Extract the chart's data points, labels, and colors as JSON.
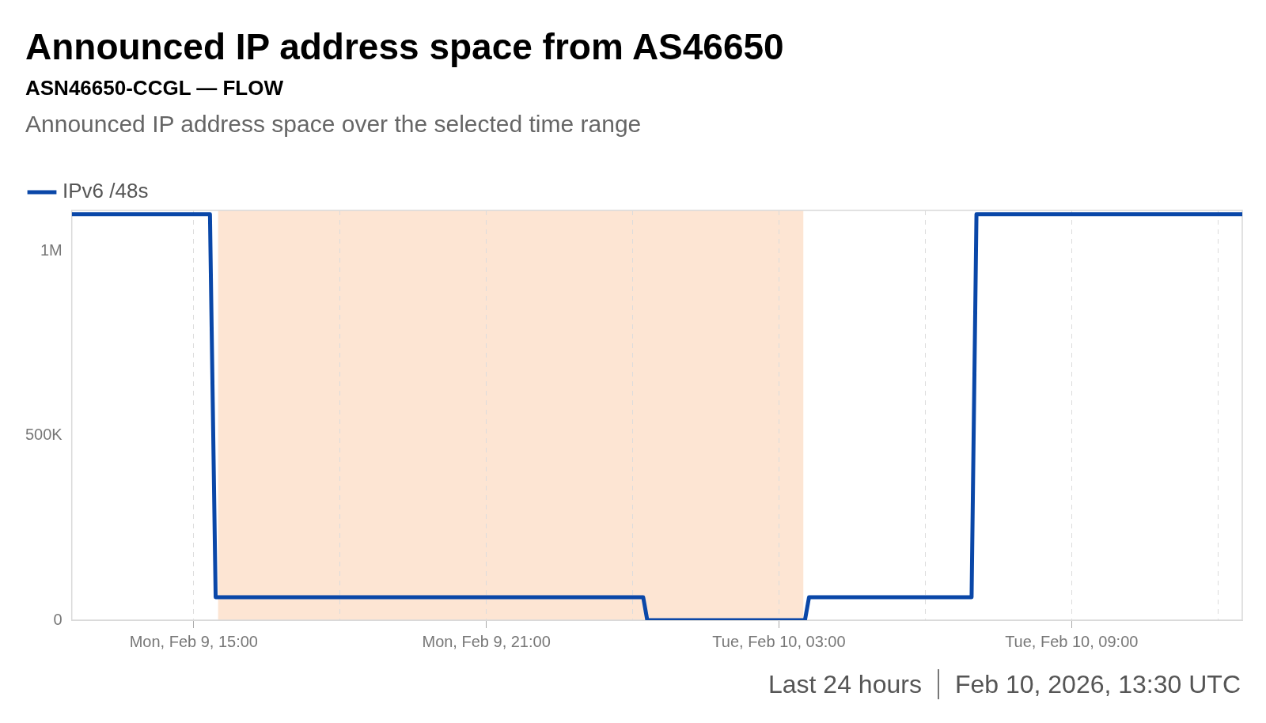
{
  "chart_data": {
    "type": "line",
    "title": "Announced IP address space from AS46650",
    "subtitle": "ASN46650-CCGL — FLOW",
    "annotations": [
      "Announced IP address space over the selected time range",
      "Last 24 hours",
      "Feb 10, 2026, 13:30 UTC"
    ],
    "series": [
      {
        "name": "IPv6 /48s",
        "color": "#0a47a8",
        "x": [
          "2026-02-09T12:30",
          "2026-02-09T15:20",
          "2026-02-09T15:27",
          "2026-02-10T00:13",
          "2026-02-10T00:18",
          "2026-02-10T03:32",
          "2026-02-10T03:37",
          "2026-02-10T06:57",
          "2026-02-10T07:03",
          "2026-02-10T12:30"
        ],
        "values": [
          1100000,
          1100000,
          62000,
          62000,
          0,
          0,
          62000,
          62000,
          1100000,
          1100000
        ]
      }
    ],
    "xlim": [
      "2026-02-09T12:30",
      "2026-02-10T12:30"
    ],
    "xticks": [
      {
        "value": "2026-02-09T15:00",
        "label": "Mon, Feb 9, 15:00"
      },
      {
        "value": "2026-02-09T18:00",
        "label": null
      },
      {
        "value": "2026-02-09T21:00",
        "label": "Mon, Feb 9, 21:00"
      },
      {
        "value": "2026-02-10T00:00",
        "label": null
      },
      {
        "value": "2026-02-10T03:00",
        "label": "Tue, Feb 10, 03:00"
      },
      {
        "value": "2026-02-10T06:00",
        "label": null
      },
      {
        "value": "2026-02-10T09:00",
        "label": "Tue, Feb 10, 09:00"
      },
      {
        "value": "2026-02-10T12:00",
        "label": null
      }
    ],
    "ylim": [
      0,
      1110000
    ],
    "yticks": [
      0,
      {
        "value": 500000,
        "label": "500K"
      },
      {
        "value": 1000000,
        "label": "1M"
      }
    ],
    "bands": [
      {
        "axis": "x",
        "from": "2026-02-09T15:30",
        "to": "2026-02-10T03:30",
        "color": "#fde5d3"
      }
    ],
    "grid": "x",
    "legend": "top left",
    "marker": "none",
    "line_style": "solid"
  }
}
